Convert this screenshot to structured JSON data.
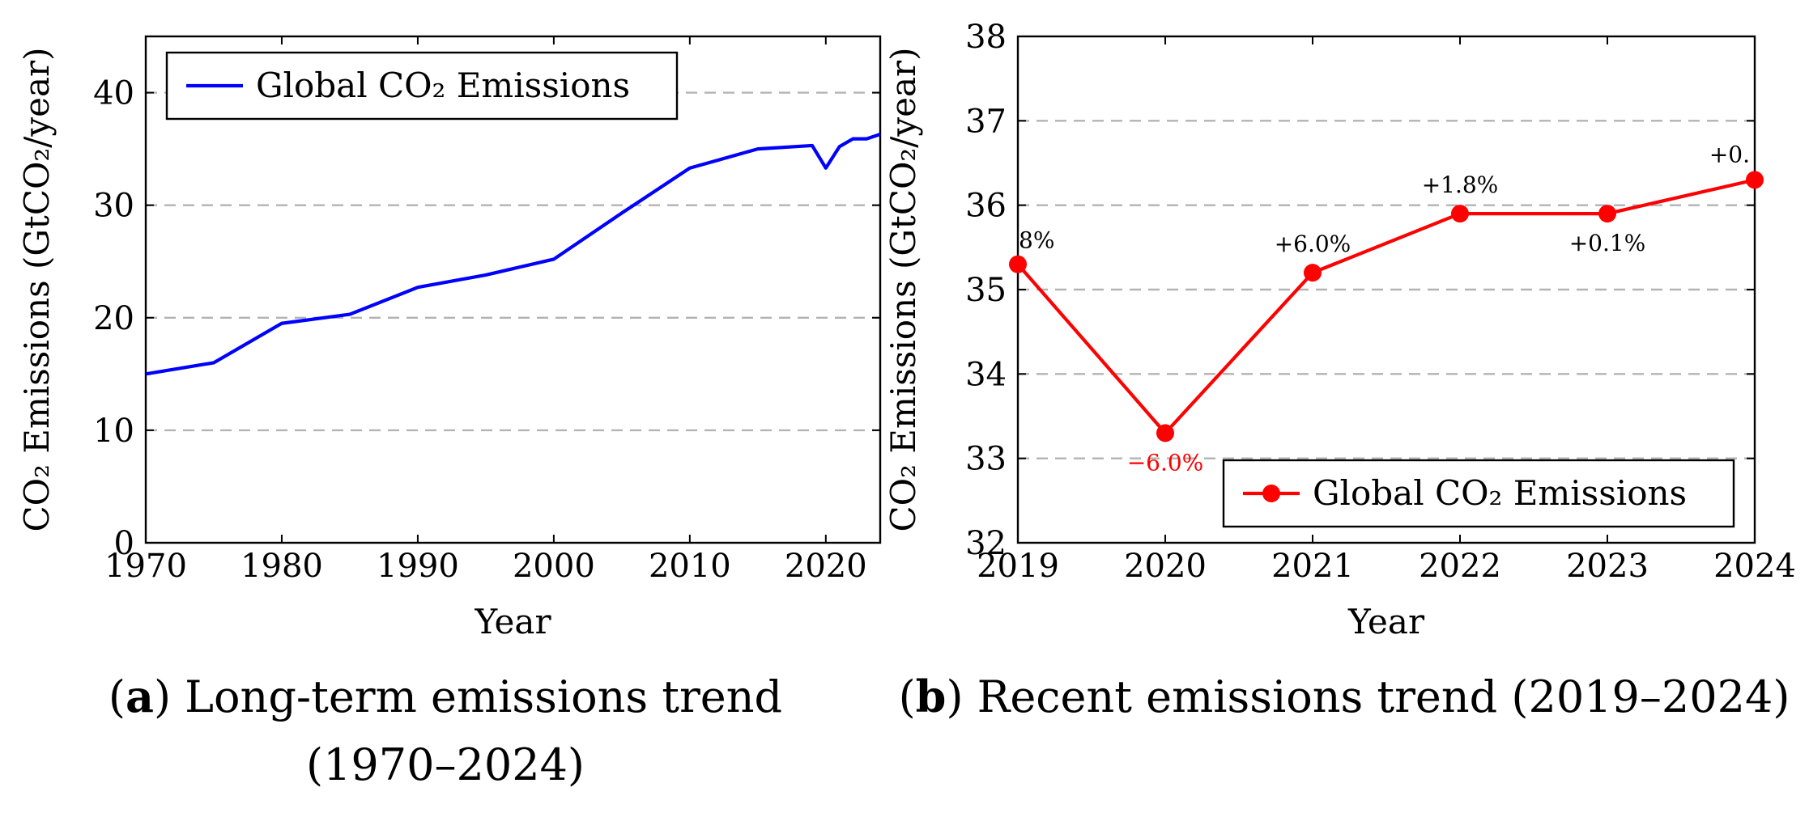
{
  "chart_data": [
    {
      "id": "a",
      "type": "line",
      "xlabel": "Year",
      "ylabel": "CO₂ Emissions (GtCO₂/year)",
      "xlim": [
        1970,
        2024
      ],
      "ylim": [
        0,
        45
      ],
      "xticks": [
        1970,
        1980,
        1990,
        2000,
        2010,
        2020
      ],
      "yticks": [
        0,
        10,
        20,
        30,
        40
      ],
      "grid": "horizontal-dashed",
      "legend_position": "top-left",
      "series": [
        {
          "name": "Global CO₂ Emissions",
          "color": "#0000ff",
          "marker": "none",
          "x": [
            1970,
            1975,
            1980,
            1985,
            1990,
            1995,
            2000,
            2005,
            2010,
            2015,
            2019,
            2020,
            2021,
            2022,
            2023,
            2024
          ],
          "y": [
            15.0,
            16.0,
            19.5,
            20.3,
            22.7,
            23.8,
            25.2,
            29.3,
            33.3,
            35.0,
            35.3,
            33.3,
            35.2,
            35.9,
            35.9,
            36.3
          ]
        }
      ],
      "caption": {
        "tag": "a",
        "text": "Long-term emissions trend",
        "line2": "(1970–2024)"
      }
    },
    {
      "id": "b",
      "type": "line",
      "xlabel": "Year",
      "ylabel": "CO₂ Emissions (GtCO₂/year)",
      "xlim": [
        2019,
        2024
      ],
      "ylim": [
        32,
        38
      ],
      "xticks": [
        2019,
        2020,
        2021,
        2022,
        2023,
        2024
      ],
      "yticks": [
        32,
        33,
        34,
        35,
        36,
        37,
        38
      ],
      "grid": "horizontal-dashed",
      "legend_position": "bottom-right",
      "series": [
        {
          "name": "Global CO₂ Emissions",
          "color": "#ff0000",
          "marker": "circle",
          "x": [
            2019,
            2020,
            2021,
            2022,
            2023,
            2024
          ],
          "y": [
            35.3,
            33.3,
            35.2,
            35.9,
            35.9,
            36.3
          ]
        }
      ],
      "annotations": [
        {
          "x": 2019,
          "y": 35.3,
          "text": "8%",
          "color": "#000000",
          "pos": "above-right"
        },
        {
          "x": 2020,
          "y": 33.3,
          "text": "−6.0%",
          "color": "#ff0000",
          "pos": "below"
        },
        {
          "x": 2021,
          "y": 35.2,
          "text": "+6.0%",
          "color": "#000000",
          "pos": "above"
        },
        {
          "x": 2022,
          "y": 35.9,
          "text": "+1.8%",
          "color": "#000000",
          "pos": "above"
        },
        {
          "x": 2023,
          "y": 35.9,
          "text": "+0.1%",
          "color": "#000000",
          "pos": "below"
        },
        {
          "x": 2024,
          "y": 36.3,
          "text": "+0.",
          "color": "#000000",
          "pos": "above-left"
        }
      ],
      "caption": {
        "tag": "b",
        "text": "Recent emissions trend (2019–2024)"
      }
    }
  ]
}
